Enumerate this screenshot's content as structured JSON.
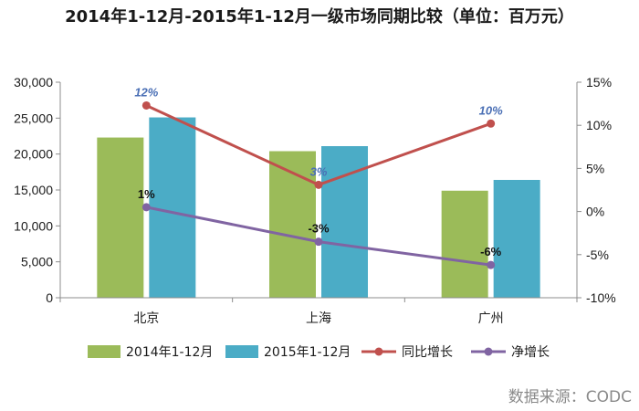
{
  "page": {
    "title": "2014年1-12月-2015年1-12月一级市场同期比较（单位：百万元）",
    "source": "数据来源：CODC"
  },
  "chart_data": {
    "type": "bar",
    "title": "2014年1-12月-2015年1-12月一级市场同期比较（单位：百万元）",
    "categories": [
      "北京",
      "上海",
      "广州"
    ],
    "y_left": {
      "min": 0,
      "max": 30000,
      "step": 5000,
      "ticks": [
        "0",
        "5,000",
        "10,000",
        "15,000",
        "20,000",
        "25,000",
        "30,000"
      ]
    },
    "y_right": {
      "min": -10,
      "max": 15,
      "step": 5,
      "ticks": [
        "-10%",
        "-5%",
        "0%",
        "5%",
        "10%",
        "15%"
      ]
    },
    "bar_series": [
      {
        "name": "2014年1-12月",
        "color": "#9bbb59",
        "values": [
          22300,
          20400,
          14900
        ]
      },
      {
        "name": "2015年1-12月",
        "color": "#4bacc6",
        "values": [
          25100,
          21100,
          16400
        ]
      }
    ],
    "line_series": [
      {
        "name": "同比增长",
        "color": "#c0504d",
        "axis": "right",
        "values": [
          12.3,
          3.1,
          10.2
        ],
        "labels": [
          "12%",
          "3%",
          "10%"
        ]
      },
      {
        "name": "净增长",
        "color": "#8064a2",
        "axis": "right",
        "values": [
          0.5,
          -3.5,
          -6.2
        ],
        "labels": [
          "1%",
          "-3%",
          "-6%"
        ]
      }
    ],
    "legend_position": "bottom",
    "grid": false
  }
}
